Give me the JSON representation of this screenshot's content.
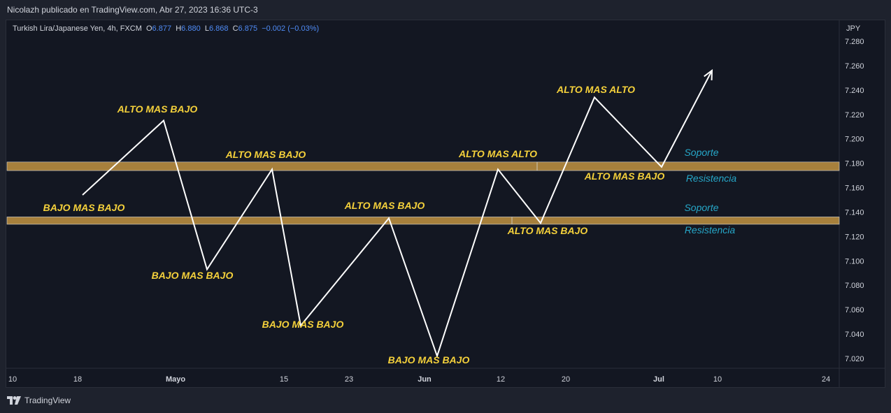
{
  "header": {
    "publisher": "Nicolazh publicado en TradingView.com, Abr 27, 2023 16:36 UTC-3"
  },
  "legend": {
    "symbol": "Turkish Lira/Japanese Yen, 4h, FXCM",
    "o_label": "O",
    "o": "6.877",
    "h_label": "H",
    "h": "6.880",
    "l_label": "L",
    "l": "6.868",
    "c_label": "C",
    "c": "6.875",
    "change": "−0.002 (−0.03%)"
  },
  "footer": {
    "brand": "TradingView",
    "logo_icon": "tradingview-logo-icon"
  },
  "colors": {
    "background": "#131722",
    "zone": "#a7803c",
    "label": "#f5d13b",
    "support": "#26a7c8",
    "line": "#ffffff"
  },
  "chart_data": {
    "type": "line",
    "currency": "JPY",
    "ylim": [
      7.01,
      7.29
    ],
    "y_ticks": [
      "7.280",
      "7.260",
      "7.240",
      "7.220",
      "7.200",
      "7.180",
      "7.160",
      "7.140",
      "7.120",
      "7.100",
      "7.080",
      "7.060",
      "7.040",
      "7.020"
    ],
    "x_ticks": [
      "10",
      "18",
      "Mayo",
      "15",
      "23",
      "Jun",
      "12",
      "20",
      "Jul",
      "10",
      "24"
    ],
    "series": [
      {
        "values": [
          {
            "x": "18",
            "y": 7.154
          },
          {
            "x": "Abr end",
            "y": 7.215
          },
          {
            "x": "Mayo +9",
            "y": 7.093
          },
          {
            "x": "15",
            "y": 7.175
          },
          {
            "x": "15+3",
            "y": 7.047
          },
          {
            "x": "23+7",
            "y": 7.135
          },
          {
            "x": "Jun +3",
            "y": 7.022
          },
          {
            "x": "12",
            "y": 7.175
          },
          {
            "x": "12+9",
            "y": 7.131
          },
          {
            "x": "20+4",
            "y": 7.234
          },
          {
            "x": "Jul +0",
            "y": 7.177
          },
          {
            "x": "10",
            "y": 7.256
          }
        ]
      }
    ],
    "zones": [
      {
        "low": 7.174,
        "high": 7.181
      },
      {
        "low": 7.13,
        "high": 7.136
      }
    ],
    "annotations": [
      {
        "text": "ALTO MAS BAJO",
        "kind": "label"
      },
      {
        "text": "BAJO MAS BAJO",
        "kind": "label"
      },
      {
        "text": "BAJO MAS BAJO",
        "kind": "label"
      },
      {
        "text": "ALTO MAS BAJO",
        "kind": "label"
      },
      {
        "text": "BAJO MAS BAJO",
        "kind": "label"
      },
      {
        "text": "ALTO MAS BAJO",
        "kind": "label"
      },
      {
        "text": "BAJO MAS BAJO",
        "kind": "label"
      },
      {
        "text": "ALTO MAS ALTO",
        "kind": "label"
      },
      {
        "text": "ALTO MAS BAJO",
        "kind": "label"
      },
      {
        "text": "ALTO MAS ALTO",
        "kind": "label"
      },
      {
        "text": "ALTO MAS BAJO",
        "kind": "label"
      },
      {
        "text": "Soporte",
        "kind": "zone"
      },
      {
        "text": "Resistencia",
        "kind": "zone"
      },
      {
        "text": "Soporte",
        "kind": "zone"
      },
      {
        "text": "Resistencia",
        "kind": "zone"
      }
    ]
  }
}
